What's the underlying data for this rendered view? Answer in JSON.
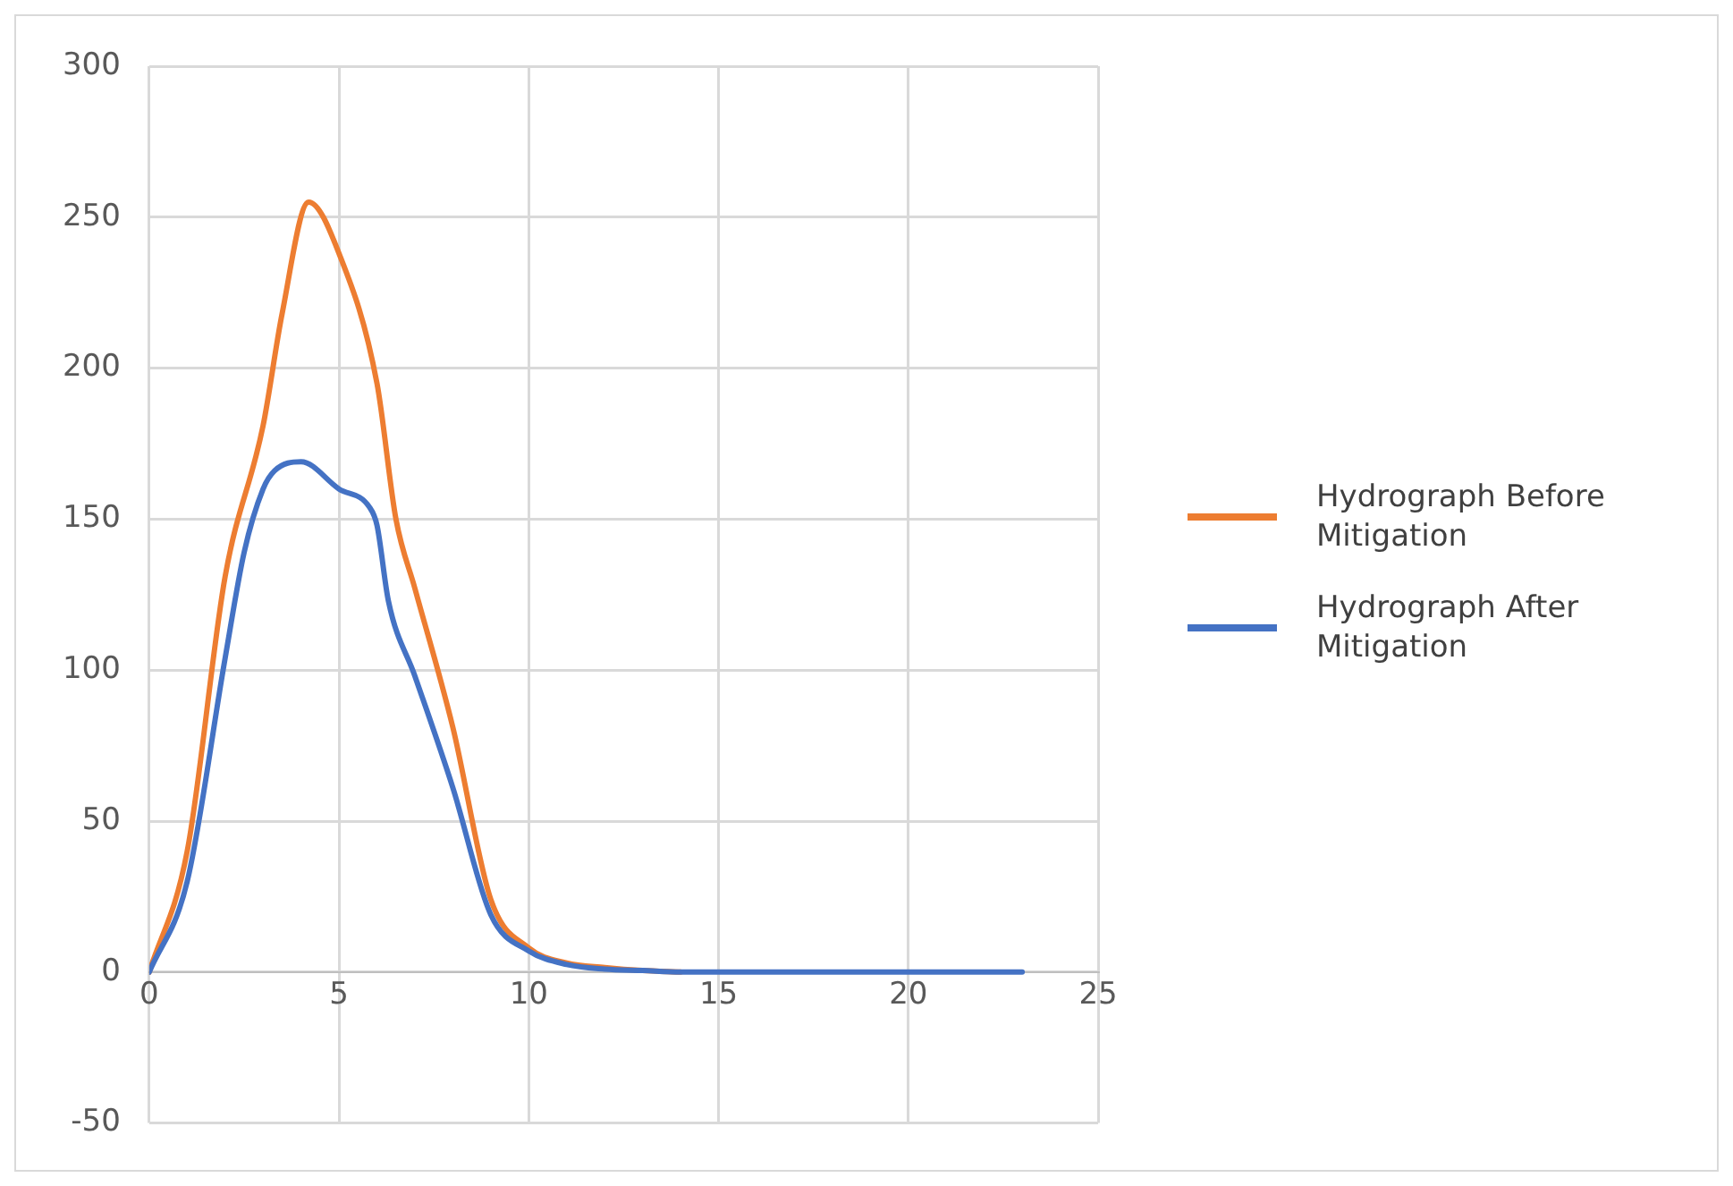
{
  "chart_data": {
    "type": "line",
    "xlim": [
      0,
      25
    ],
    "xticks": [
      0,
      5,
      10,
      15,
      20,
      25
    ],
    "ylim": [
      -50,
      300
    ],
    "yticks": [
      -50,
      0,
      50,
      100,
      150,
      200,
      250,
      300
    ],
    "grid": true,
    "legend": "right",
    "marker": "none",
    "line_style": "solid",
    "series": [
      {
        "name": "Hydrograph Before Mitigation",
        "color": "#ed7d31",
        "x": [
          0,
          1,
          2,
          3,
          3.5,
          4.2,
          5,
          6,
          6.5,
          7,
          8,
          9,
          10,
          11,
          12,
          13,
          14
        ],
        "values": [
          0,
          40,
          131,
          181,
          218,
          255,
          238,
          195,
          150,
          127,
          81,
          24,
          8,
          3,
          1.5,
          0.5,
          0
        ]
      },
      {
        "name": "Hydrograph After Mitigation",
        "color": "#4472c4",
        "x": [
          0,
          1,
          2,
          2.5,
          3,
          3.3,
          4,
          5,
          5.8,
          6,
          6.3,
          7,
          8,
          9,
          10,
          11,
          12,
          13,
          14,
          15,
          16,
          17,
          18,
          19,
          20,
          21,
          22,
          23
        ],
        "values": [
          0,
          30,
          104,
          139,
          160,
          166,
          169,
          160,
          154,
          148,
          123,
          98,
          61,
          19,
          7,
          2.5,
          1,
          0.5,
          0,
          0,
          0,
          0,
          0,
          0,
          0,
          0,
          0,
          0
        ]
      }
    ]
  }
}
